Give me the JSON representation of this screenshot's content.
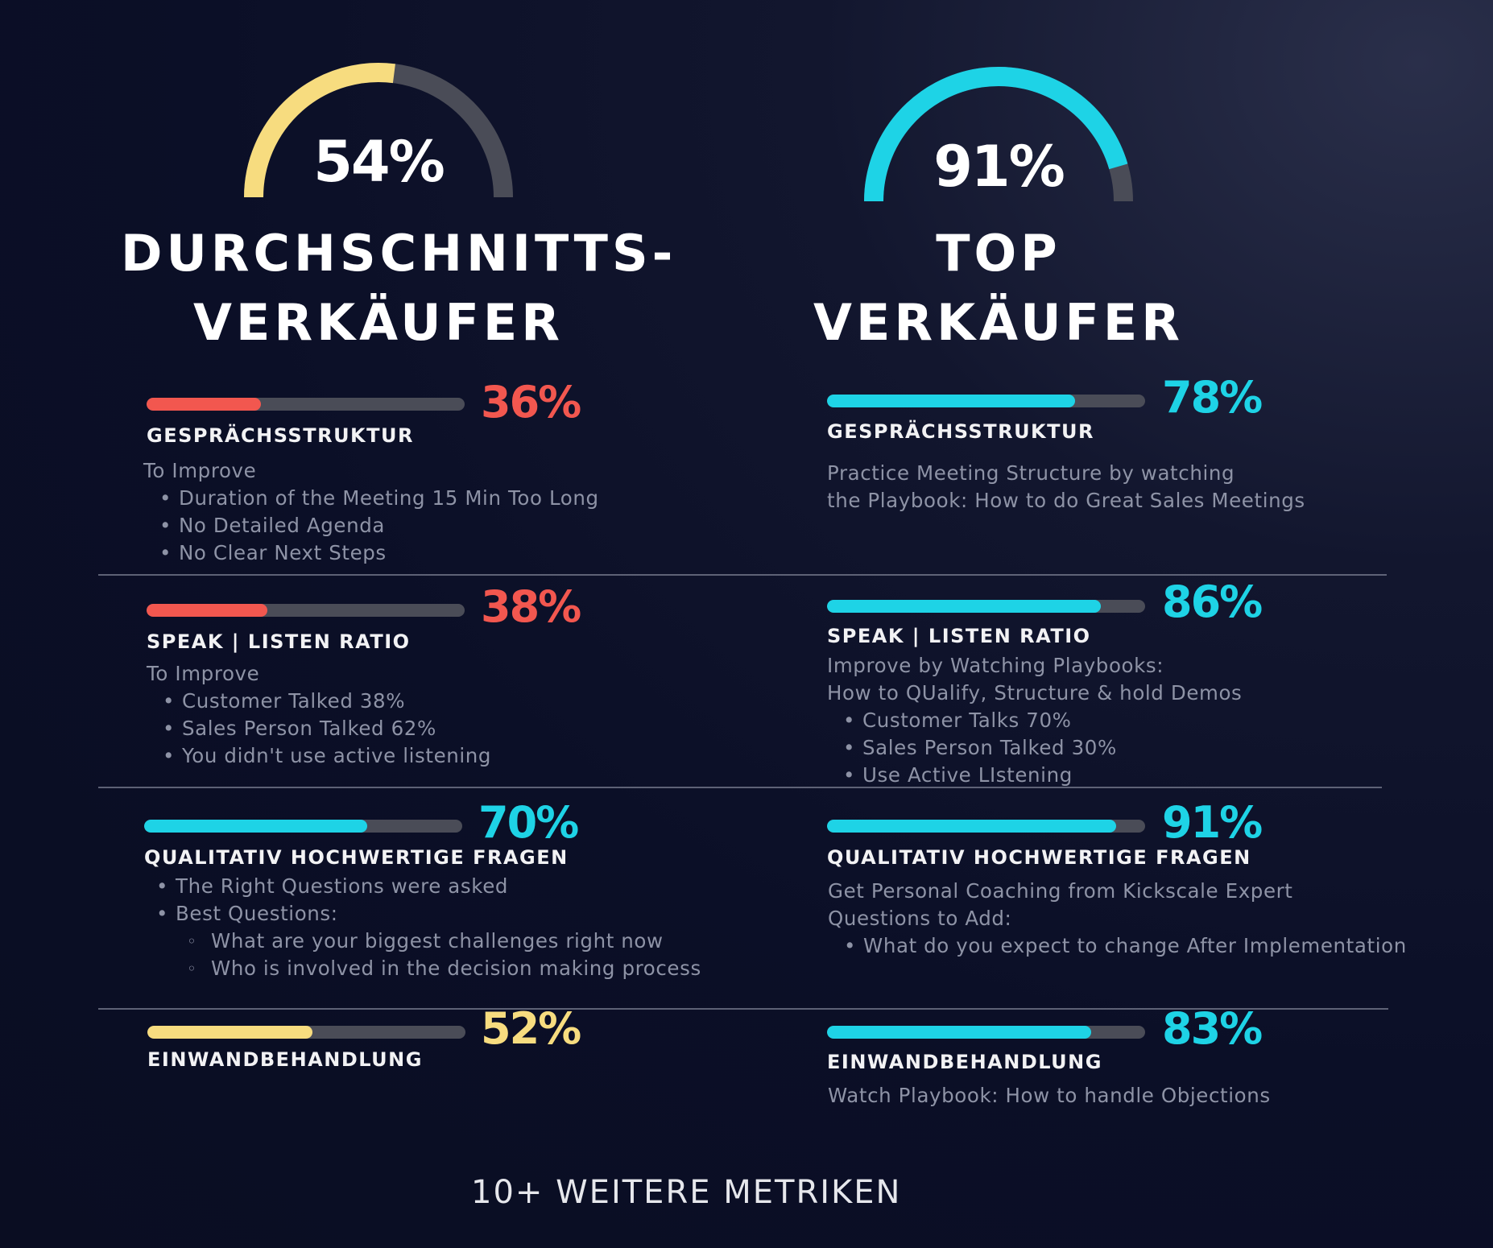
{
  "colors": {
    "yellow": "#f7dc7f",
    "red": "#f2574f",
    "cyan": "#1ed3e6",
    "track": "#4a4c57"
  },
  "left": {
    "gauge": {
      "value_label": "54%",
      "value": 0.54,
      "color": "#f7dc7f"
    },
    "heading_line1": "DURCHSCHNITTS-",
    "heading_line2": "VERKÄUFER",
    "metrics": [
      {
        "title": "GESPRÄCHSSTRUKTUR",
        "pct_label": "36%",
        "value": 0.36,
        "color": "#f2574f",
        "note_head": "To Improve",
        "bullets": [
          "Duration of the Meeting 15 Min Too Long",
          "No Detailed Agenda",
          "No Clear Next Steps"
        ]
      },
      {
        "title": "SPEAK | LISTEN RATIO",
        "pct_label": "38%",
        "value": 0.38,
        "color": "#f2574f",
        "note_head": "To Improve",
        "bullets": [
          "Customer Talked 38%",
          "Sales Person Talked 62%",
          "You didn't use active listening"
        ]
      },
      {
        "title": "QUALITATIV HOCHWERTIGE FRAGEN",
        "pct_label": "70%",
        "value": 0.7,
        "color": "#1ed3e6",
        "bullets": [
          "The Right Questions were asked",
          "Best Questions:"
        ],
        "sub_bullets": [
          "What are your biggest challenges right now",
          "Who is involved in the decision making process"
        ]
      },
      {
        "title": "EINWANDBEHANDLUNG",
        "pct_label": "52%",
        "value": 0.52,
        "color": "#f7dc7f"
      }
    ]
  },
  "right": {
    "gauge": {
      "value_label": "91%",
      "value": 0.91,
      "color": "#1ed3e6"
    },
    "heading_line1": "TOP",
    "heading_line2": "VERKÄUFER",
    "metrics": [
      {
        "title": "GESPRÄCHSSTRUKTUR",
        "pct_label": "78%",
        "value": 0.78,
        "color": "#1ed3e6",
        "lines": [
          "Practice Meeting Structure by watching",
          "the Playbook: How to do Great Sales Meetings"
        ]
      },
      {
        "title": "SPEAK | LISTEN RATIO",
        "pct_label": "86%",
        "value": 0.86,
        "color": "#1ed3e6",
        "lines": [
          "Improve by Watching Playbooks:",
          "How to QUalify, Structure & hold Demos"
        ],
        "bullets": [
          "Customer Talks 70%",
          "Sales Person Talked 30%",
          "Use Active LIstening"
        ]
      },
      {
        "title": "QUALITATIV HOCHWERTIGE FRAGEN",
        "pct_label": "91%",
        "value": 0.91,
        "color": "#1ed3e6",
        "lines": [
          "Get Personal Coaching from Kickscale Expert",
          "Questions to Add:"
        ],
        "bullets": [
          "What do you expect to change After Implementation"
        ]
      },
      {
        "title": "EINWANDBEHANDLUNG",
        "pct_label": "83%",
        "value": 0.83,
        "color": "#1ed3e6",
        "lines": [
          "Watch Playbook: How to handle Objections"
        ]
      }
    ]
  },
  "footer": "10+ WEITERE METRIKEN"
}
